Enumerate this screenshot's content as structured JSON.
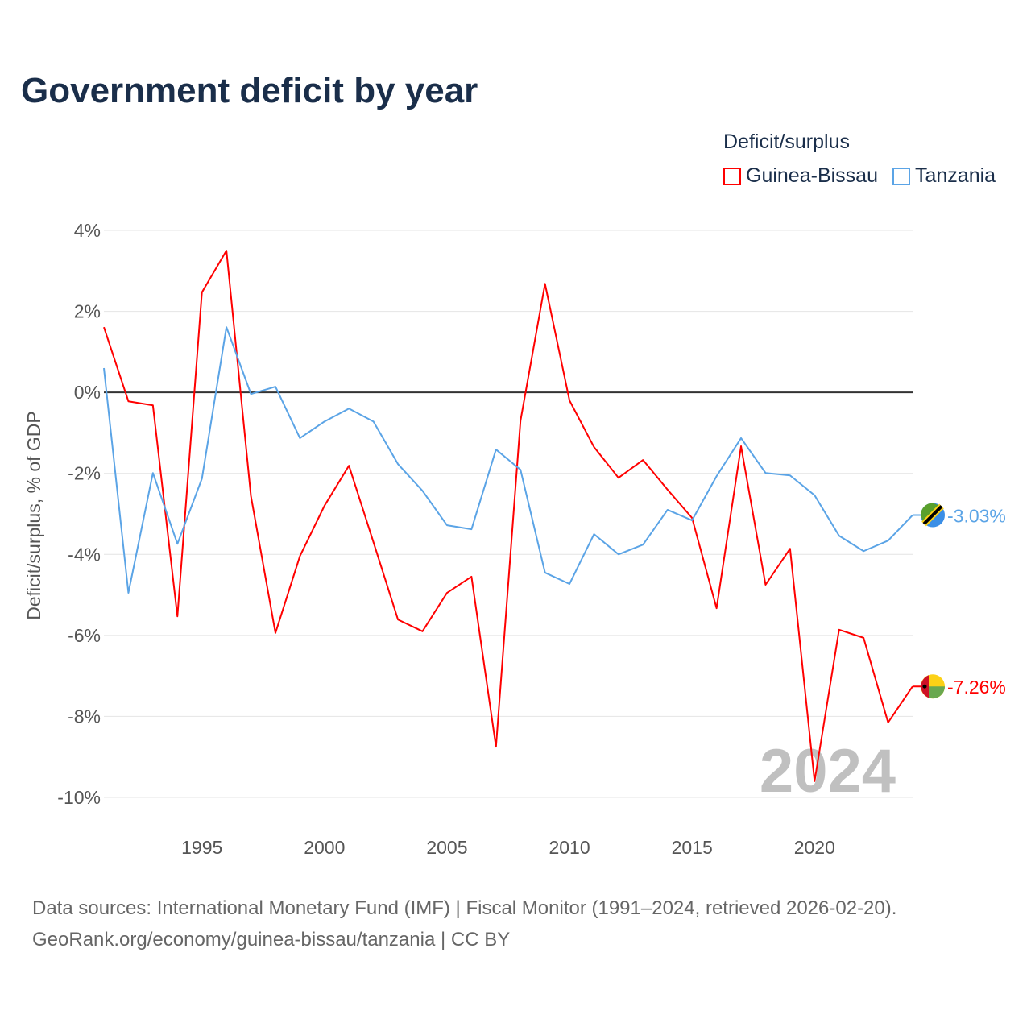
{
  "chart_data": {
    "type": "line",
    "title": "Government deficit by year",
    "legend_title": "Deficit/surplus",
    "ylabel": "Deficit/surplus, % of GDP",
    "xlabel": "",
    "ylim": [
      -10,
      4
    ],
    "xlim": [
      1991,
      2024
    ],
    "y_ticks": [
      4,
      2,
      0,
      -2,
      -4,
      -6,
      -8,
      -10
    ],
    "y_tick_labels": [
      "4%",
      "2%",
      "0%",
      "-2%",
      "-4%",
      "-6%",
      "-8%",
      "-10%"
    ],
    "x_ticks": [
      1995,
      2000,
      2005,
      2010,
      2015,
      2020
    ],
    "x_tick_labels": [
      "1995",
      "2000",
      "2005",
      "2010",
      "2015",
      "2020"
    ],
    "grid": true,
    "legend_placement": "top-right",
    "year_watermark": "2024",
    "x": [
      1991,
      1992,
      1993,
      1994,
      1995,
      1996,
      1997,
      1998,
      1999,
      2000,
      2001,
      2002,
      2003,
      2004,
      2005,
      2006,
      2007,
      2008,
      2009,
      2010,
      2011,
      2012,
      2013,
      2014,
      2015,
      2016,
      2017,
      2018,
      2019,
      2020,
      2021,
      2022,
      2023,
      2024
    ],
    "series": [
      {
        "name": "Guinea-Bissau",
        "color": "#ff0000",
        "end_label": "-7.26%",
        "values": [
          1.61,
          -0.22,
          -0.32,
          -5.53,
          2.47,
          3.5,
          -2.56,
          -5.94,
          -4.04,
          -2.8,
          -1.81,
          -3.7,
          -5.61,
          -5.9,
          -4.95,
          -4.55,
          -8.75,
          -0.7,
          2.68,
          -0.2,
          -1.35,
          -2.11,
          -1.67,
          -2.4,
          -3.1,
          -5.33,
          -1.33,
          -4.75,
          -3.86,
          -9.6,
          -5.86,
          -6.06,
          -8.15,
          -7.26
        ]
      },
      {
        "name": "Tanzania",
        "color": "#5ba4e6",
        "end_label": "-3.03%",
        "values": [
          0.6,
          -4.95,
          -1.99,
          -3.74,
          -2.13,
          1.61,
          -0.04,
          0.14,
          -1.13,
          -0.72,
          -0.4,
          -0.72,
          -1.77,
          -2.43,
          -3.28,
          -3.38,
          -1.41,
          -1.91,
          -4.45,
          -4.73,
          -3.5,
          -4.0,
          -3.76,
          -2.9,
          -3.16,
          -2.07,
          -1.13,
          -1.99,
          -2.05,
          -2.54,
          -3.54,
          -3.92,
          -3.66,
          -3.03
        ]
      }
    ]
  },
  "footer": {
    "line1": "Data sources: International Monetary Fund (IMF) | Fiscal Monitor (1991–2024, retrieved 2026-02-20).",
    "line2": "GeoRank.org/economy/guinea-bissau/tanzania | CC BY"
  }
}
